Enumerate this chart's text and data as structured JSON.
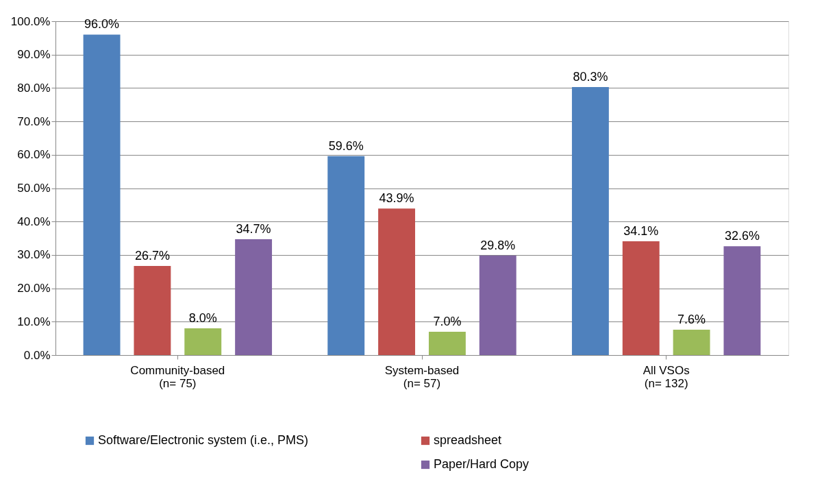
{
  "chart_data": {
    "type": "bar",
    "categories": [
      "Community-based\n(n= 75)",
      "System-based\n(n= 57)",
      "All VSOs\n(n= 132)"
    ],
    "series": [
      {
        "name": "Software/Electronic system (i.e., PMS)",
        "color": "#4f81bd",
        "values": [
          96.0,
          59.6,
          80.3
        ],
        "value_labels": [
          "96.0%",
          "59.6%",
          "80.3%"
        ]
      },
      {
        "name": "spreadsheet",
        "color": "#c0504d",
        "values": [
          26.7,
          43.9,
          34.1
        ],
        "value_labels": [
          "26.7%",
          "43.9%",
          "34.1%"
        ]
      },
      {
        "color": "#9bbb59",
        "values": [
          8.0,
          7.0,
          7.6
        ],
        "value_labels": [
          "8.0%",
          "7.0%",
          "7.6%"
        ]
      },
      {
        "name": "Paper/Hard Copy",
        "color": "#8064a2",
        "values": [
          34.7,
          29.8,
          32.6
        ],
        "value_labels": [
          "34.7%",
          "29.8%",
          "32.6%"
        ]
      }
    ],
    "ylim": [
      0,
      100
    ],
    "yticks": [
      {
        "value": 0,
        "label": "0.0%"
      },
      {
        "value": 10,
        "label": "10.0%"
      },
      {
        "value": 20,
        "label": "20.0%"
      },
      {
        "value": 30,
        "label": "30.0%"
      },
      {
        "value": 40,
        "label": "40.0%"
      },
      {
        "value": 50,
        "label": "50.0%"
      },
      {
        "value": 60,
        "label": "60.0%"
      },
      {
        "value": 70,
        "label": "70.0%"
      },
      {
        "value": 80,
        "label": "80.0%"
      },
      {
        "value": 90,
        "label": "90.0%"
      },
      {
        "value": 100,
        "label": "100.0%"
      }
    ],
    "grid": "y",
    "legend": "bottom"
  }
}
